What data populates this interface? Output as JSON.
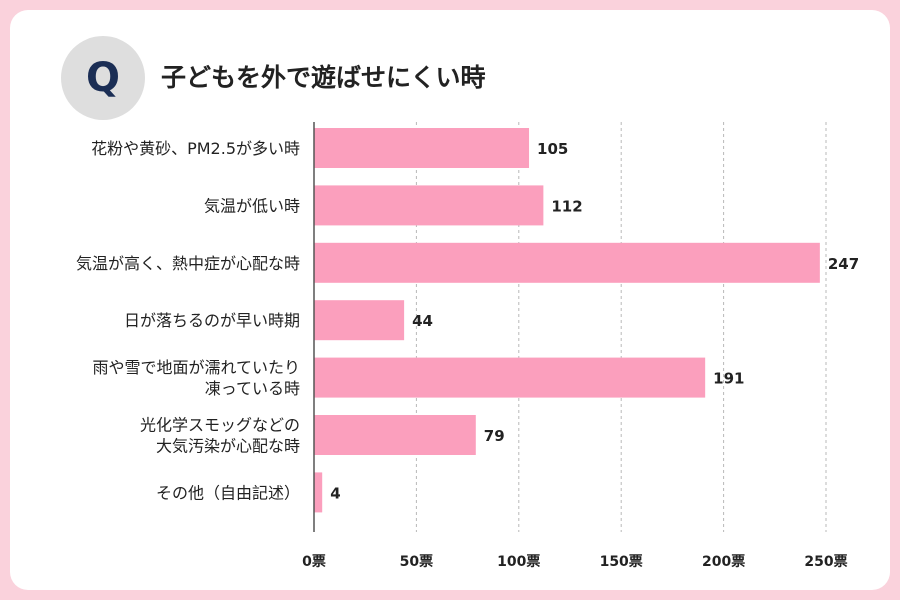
{
  "header": {
    "badge": "Q",
    "title": "子どもを外で遊ばせにくい時"
  },
  "colors": {
    "frame": "#fad2dc",
    "bar": "#fb9fbd",
    "grid": "#b8b8b8",
    "axis": "#555555",
    "badge_bg": "#dedede",
    "badge_text": "#1b2e55"
  },
  "chart_data": {
    "type": "bar",
    "orientation": "horizontal",
    "title": "子どもを外で遊ばせにくい時",
    "categories": [
      [
        "花粉や黄砂、PM2.5が多い時"
      ],
      [
        "気温が低い時"
      ],
      [
        "気温が高く、熱中症が心配な時"
      ],
      [
        "日が落ちるのが早い時期"
      ],
      [
        "雨や雪で地面が濡れていたり",
        "凍っている時"
      ],
      [
        "光化学スモッグなどの",
        "大気汚染が心配な時"
      ],
      [
        "その他（自由記述）"
      ]
    ],
    "values": [
      105,
      112,
      247,
      44,
      191,
      79,
      4
    ],
    "xlim": [
      0,
      250
    ],
    "ticks": [
      0,
      50,
      100,
      150,
      200,
      250
    ],
    "tick_suffix": "票",
    "grid": true,
    "xlabel": "",
    "ylabel": ""
  }
}
